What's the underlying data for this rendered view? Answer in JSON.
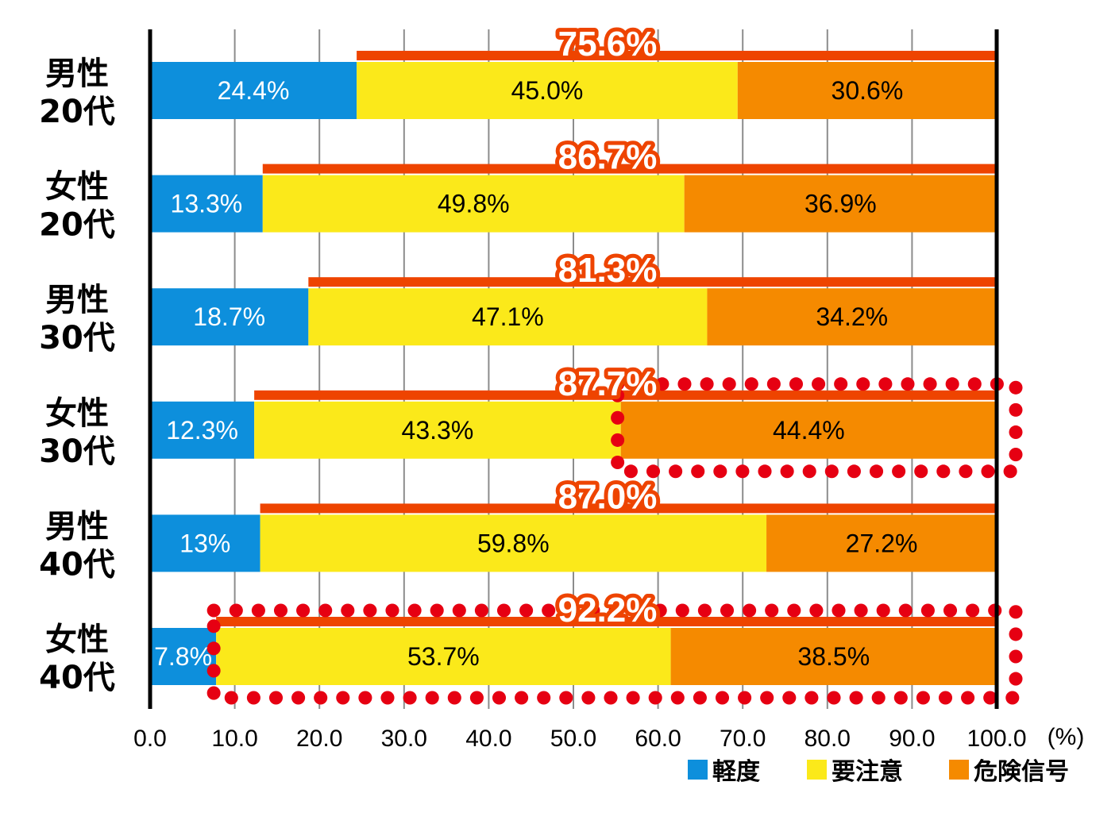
{
  "chart_data": {
    "type": "bar",
    "orientation": "horizontal",
    "stacked": true,
    "categories": [
      [
        "男性",
        "20代"
      ],
      [
        "女性",
        "20代"
      ],
      [
        "男性",
        "30代"
      ],
      [
        "女性",
        "30代"
      ],
      [
        "男性",
        "40代"
      ],
      [
        "女性",
        "40代"
      ]
    ],
    "series": [
      {
        "name": "軽度",
        "color": "#0d8fdc",
        "label_color": "#ffffff",
        "values": [
          24.4,
          13.3,
          18.7,
          12.3,
          13,
          7.8
        ],
        "labels": [
          "24.4%",
          "13.3%",
          "18.7%",
          "12.3%",
          "13%",
          "7.8%"
        ]
      },
      {
        "name": "要注意",
        "color": "#fbe91a",
        "label_color": "#000000",
        "values": [
          45.0,
          49.8,
          47.1,
          43.3,
          59.8,
          53.7
        ],
        "labels": [
          "45.0%",
          "49.8%",
          "47.1%",
          "43.3%",
          "59.8%",
          "53.7%"
        ]
      },
      {
        "name": "危険信号",
        "color": "#f58a00",
        "label_color": "#000000",
        "values": [
          30.6,
          36.9,
          34.2,
          44.4,
          27.2,
          38.5
        ],
        "labels": [
          "30.6%",
          "36.9%",
          "34.2%",
          "44.4%",
          "27.2%",
          "38.5%"
        ]
      }
    ],
    "totals": {
      "values": [
        75.6,
        86.7,
        81.3,
        87.7,
        87.0,
        92.2
      ],
      "labels": [
        "75.6%",
        "86.7%",
        "81.3%",
        "87.7%",
        "87.0%",
        "92.2%"
      ],
      "color": "#ee4400"
    },
    "highlights": [
      {
        "category_index": 3,
        "from": 55.5,
        "to": 100
      },
      {
        "category_index": 5,
        "from": 7.8,
        "to": 100
      }
    ],
    "highlight_color": "#e60012",
    "x_ticks": [
      "0.0",
      "10.0",
      "20.0",
      "30.0",
      "40.0",
      "50.0",
      "60.0",
      "70.0",
      "80.0",
      "90.0",
      "100.0"
    ],
    "x_unit": "(%)",
    "xlim": [
      0,
      100
    ],
    "grid": true,
    "legend_position": "bottom-right",
    "title": "",
    "xlabel": "",
    "ylabel": ""
  }
}
